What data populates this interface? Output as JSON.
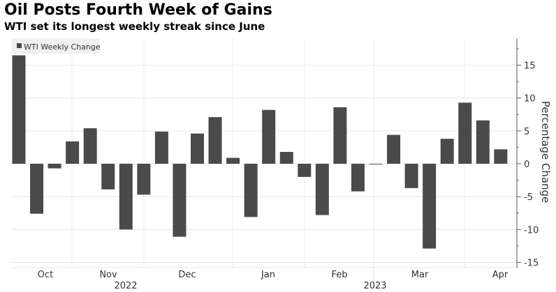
{
  "chart_data": {
    "type": "bar",
    "title": "Oil Posts Fourth Week of Gains",
    "subtitle": "WTI set its longest weekly streak since June",
    "legend": "WTI Weekly Change",
    "legend_placement": "top-left",
    "ylabel": "Percentage Change",
    "ylim": [
      -16,
      19
    ],
    "yticks": [
      -15,
      -10,
      -5,
      0,
      5,
      10,
      15
    ],
    "ytick_labels": [
      "-15",
      "-10",
      "-5",
      "0",
      "5",
      "10",
      "15"
    ],
    "month_labels": [
      "Oct",
      "Nov",
      "Dec",
      "Jan",
      "Feb",
      "Mar",
      "Apr"
    ],
    "year_labels": [
      "2022",
      "2023"
    ],
    "values": [
      16.5,
      -7.6,
      -0.7,
      3.4,
      5.4,
      -3.9,
      -10.0,
      -4.7,
      4.9,
      -11.1,
      4.6,
      7.1,
      0.9,
      -8.1,
      8.2,
      1.8,
      -2.0,
      -7.8,
      8.6,
      -4.2,
      -0.1,
      4.4,
      -3.7,
      -12.9,
      3.8,
      9.3,
      6.6,
      2.2
    ],
    "bar_color": "#4a4a4a"
  }
}
